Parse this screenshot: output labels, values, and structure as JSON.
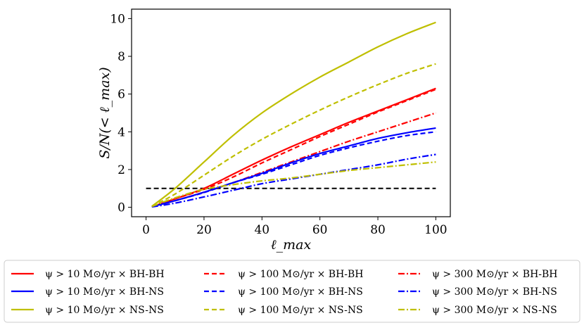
{
  "chart_data": {
    "type": "line",
    "title": "",
    "xlabel": "ℓ_max",
    "ylabel": "S/N(< ℓ_max)",
    "xlim": [
      -5,
      105
    ],
    "ylim": [
      -0.5,
      10.5
    ],
    "xticks": [
      0,
      20,
      40,
      60,
      80,
      100
    ],
    "yticks": [
      0,
      2,
      4,
      6,
      8,
      10
    ],
    "grid": false,
    "legend_position": "bottom",
    "x": [
      2,
      10,
      20,
      30,
      40,
      50,
      60,
      70,
      80,
      90,
      100
    ],
    "reference_line": {
      "y": 1,
      "x_range": [
        0,
        100
      ],
      "color": "#000000",
      "style": "dashed"
    },
    "series": [
      {
        "name": "ψ > 10 M⊙/yr × BH-BH",
        "color": "#ff0000",
        "style": "solid",
        "values": [
          0.03,
          0.45,
          1.0,
          1.75,
          2.5,
          3.2,
          3.85,
          4.5,
          5.1,
          5.7,
          6.3
        ]
      },
      {
        "name": "ψ > 100 M⊙/yr × BH-BH",
        "color": "#ff0000",
        "style": "dashed",
        "values": [
          0.03,
          0.45,
          0.95,
          1.6,
          2.35,
          3.05,
          3.75,
          4.4,
          5.05,
          5.65,
          6.25
        ]
      },
      {
        "name": "ψ > 300 M⊙/yr × BH-BH",
        "color": "#ff0000",
        "style": "dashdot",
        "values": [
          0.03,
          0.35,
          0.8,
          1.3,
          1.85,
          2.4,
          2.95,
          3.5,
          4.0,
          4.5,
          5.0
        ]
      },
      {
        "name": "ψ > 10 M⊙/yr × BH-NS",
        "color": "#0000ff",
        "style": "solid",
        "values": [
          0.03,
          0.35,
          0.8,
          1.3,
          1.8,
          2.35,
          2.85,
          3.25,
          3.65,
          3.95,
          4.2
        ]
      },
      {
        "name": "ψ > 100 M⊙/yr × BH-NS",
        "color": "#0000ff",
        "style": "dashed",
        "values": [
          0.03,
          0.35,
          0.78,
          1.3,
          1.75,
          2.25,
          2.75,
          3.15,
          3.5,
          3.8,
          4.0
        ]
      },
      {
        "name": "ψ > 300 M⊙/yr × BH-NS",
        "color": "#0000ff",
        "style": "dashdot",
        "values": [
          0.02,
          0.22,
          0.55,
          0.9,
          1.25,
          1.5,
          1.75,
          2.0,
          2.25,
          2.55,
          2.8
        ]
      },
      {
        "name": "ψ > 10 M⊙/yr × NS-NS",
        "color": "#bfbf00",
        "style": "solid",
        "values": [
          0.05,
          1.0,
          2.4,
          3.8,
          5.0,
          6.0,
          6.9,
          7.7,
          8.5,
          9.2,
          9.8
        ]
      },
      {
        "name": "ψ > 100 M⊙/yr × NS-NS",
        "color": "#bfbf00",
        "style": "dashed",
        "values": [
          0.05,
          0.7,
          1.7,
          2.7,
          3.6,
          4.4,
          5.15,
          5.85,
          6.5,
          7.1,
          7.6
        ]
      },
      {
        "name": "ψ > 300 M⊙/yr × NS-NS",
        "color": "#bfbf00",
        "style": "dashdot",
        "values": [
          0.04,
          0.5,
          0.95,
          1.2,
          1.4,
          1.55,
          1.75,
          1.95,
          2.1,
          2.25,
          2.4
        ]
      }
    ]
  },
  "legend": {
    "columns": [
      [
        "ψ > 10 M⊙/yr × BH-BH",
        "ψ > 10 M⊙/yr × BH-NS",
        "ψ > 10 M⊙/yr × NS-NS"
      ],
      [
        "ψ > 100 M⊙/yr × BH-BH",
        "ψ > 100 M⊙/yr × BH-NS",
        "ψ > 100 M⊙/yr × NS-NS"
      ],
      [
        "ψ > 300 M⊙/yr × BH-BH",
        "ψ > 300 M⊙/yr × BH-NS",
        "ψ > 300 M⊙/yr × NS-NS"
      ]
    ]
  }
}
